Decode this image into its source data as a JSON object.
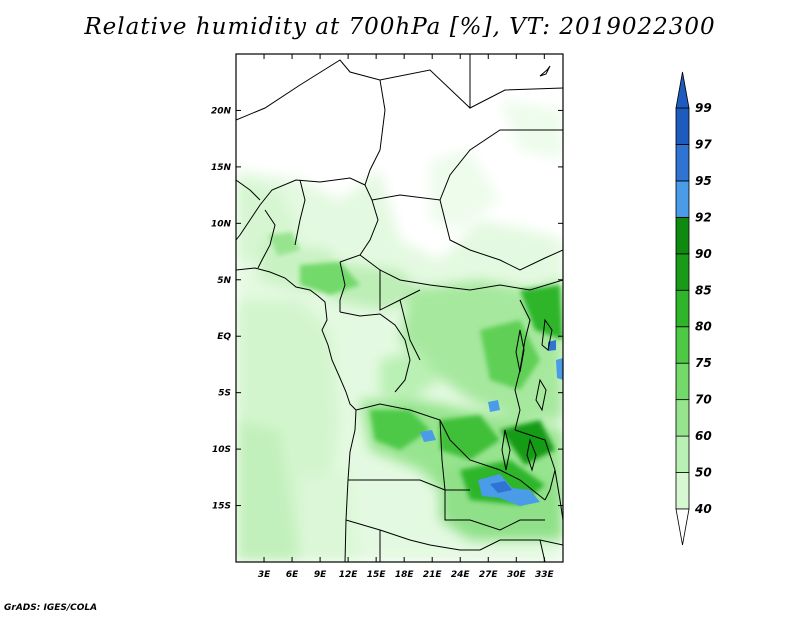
{
  "title": "Relative humidity at 700hPa [%], VT: 2019022300",
  "credit": "GrADS: IGES/COLA",
  "map": {
    "lon_range": [
      0,
      35
    ],
    "lat_range": [
      -20,
      25
    ],
    "lon_ticks": [
      "3E",
      "6E",
      "9E",
      "12E",
      "15E",
      "18E",
      "21E",
      "24E",
      "27E",
      "30E",
      "33E"
    ],
    "lat_ticks": [
      "20N",
      "15N",
      "10N",
      "5N",
      "EQ",
      "5S",
      "10S",
      "15S"
    ],
    "lon_tick_values": [
      3,
      6,
      9,
      12,
      15,
      18,
      21,
      24,
      27,
      30,
      33
    ],
    "lat_tick_values": [
      20,
      15,
      10,
      5,
      0,
      -5,
      -10,
      -15
    ]
  },
  "colorbar": {
    "labels": [
      "99",
      "97",
      "95",
      "92",
      "90",
      "85",
      "80",
      "75",
      "70",
      "60",
      "50",
      "40"
    ],
    "levels": [
      40,
      50,
      60,
      70,
      75,
      80,
      85,
      90,
      92,
      95,
      97,
      99
    ],
    "colors": [
      "#eefcec",
      "#d6f7d2",
      "#b9f0b3",
      "#97e48f",
      "#72d96a",
      "#4dc946",
      "#2fb52a",
      "#199b18",
      "#0f8a10",
      "#4a9be8",
      "#2f73d3",
      "#1e5bbf"
    ]
  }
}
